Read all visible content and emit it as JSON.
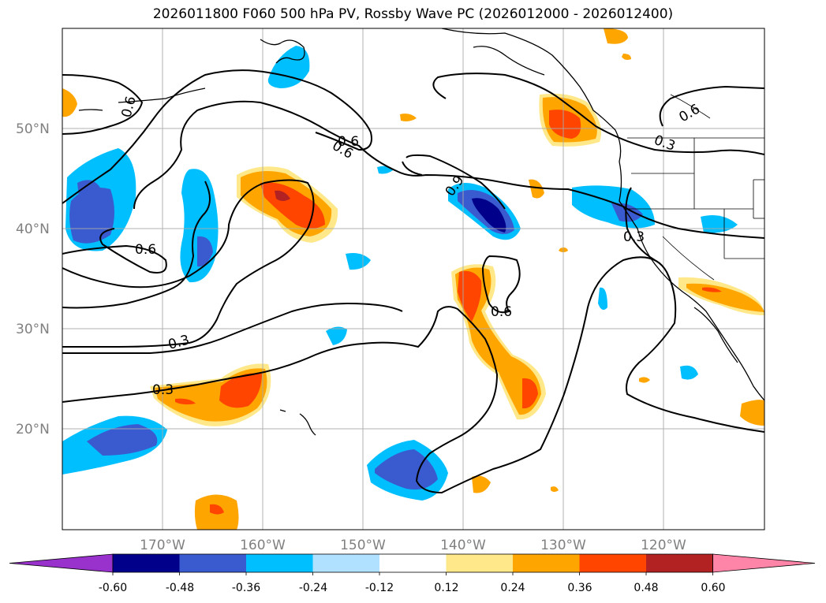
{
  "title": "2026011800 F060 500 hPa PV, Rossby Wave PC (2026012000 - 2026012400)",
  "lat_ticks": [
    "50°N",
    "40°N",
    "30°N",
    "20°N"
  ],
  "lon_ticks": [
    "170°W",
    "160°W",
    "150°W",
    "140°W",
    "130°W",
    "120°W"
  ],
  "contour_labels": [
    "0.6",
    "0.6",
    "0.6",
    "0.6",
    "0.9",
    "0.3",
    "0.3",
    "0.3",
    "0.3",
    "0.6",
    "0.6"
  ],
  "colorbar": {
    "tick_labels": [
      "-0.60",
      "-0.48",
      "-0.36",
      "-0.24",
      "-0.12",
      "0.12",
      "0.24",
      "0.36",
      "0.48",
      "0.60"
    ],
    "colors": [
      "#9932cc",
      "#00008b",
      "#3a5bcf",
      "#00bfff",
      "#b0e2ff",
      "#ffffff",
      "#ffe88a",
      "#ffa500",
      "#ff4500",
      "#b22222",
      "#ff85a8"
    ]
  }
}
